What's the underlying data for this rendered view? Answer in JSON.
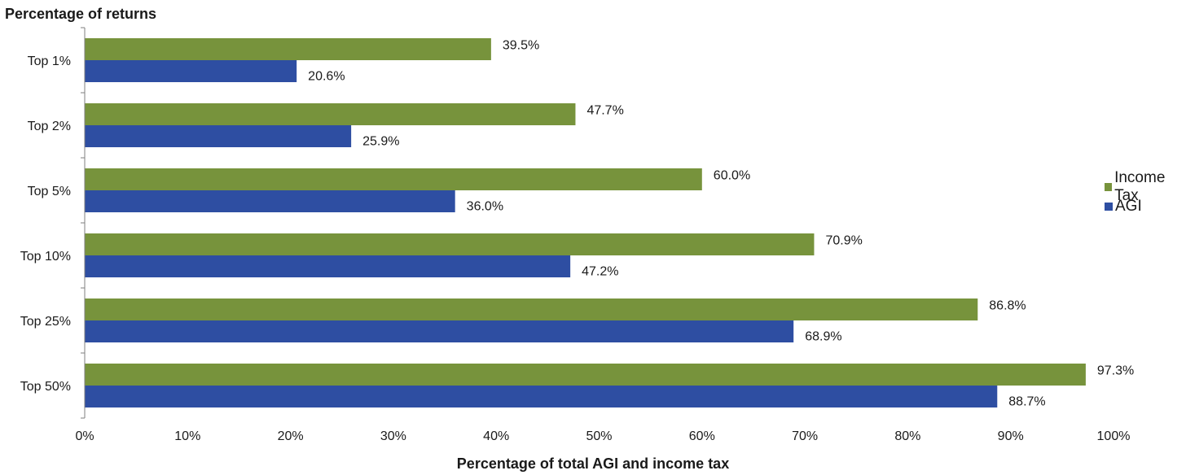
{
  "chart_data": {
    "type": "bar",
    "orientation": "horizontal",
    "ylabel": "Percentage of returns",
    "xlabel": "Percentage of total AGI and income tax",
    "categories": [
      "Top 1%",
      "Top 2%",
      "Top 5%",
      "Top 10%",
      "Top 25%",
      "Top 50%"
    ],
    "series": [
      {
        "name": "Income Tax",
        "color": "#77933c",
        "values": [
          39.5,
          47.7,
          60.0,
          70.9,
          86.8,
          97.3
        ],
        "labels": [
          "39.5%",
          "47.7%",
          "60.0%",
          "70.9%",
          "86.8%",
          "97.3%"
        ]
      },
      {
        "name": "AGI",
        "color": "#2e4ea2",
        "values": [
          20.6,
          25.9,
          36.0,
          47.2,
          68.9,
          88.7
        ],
        "labels": [
          "20.6%",
          "25.9%",
          "36.0%",
          "47.2%",
          "68.9%",
          "88.7%"
        ]
      }
    ],
    "xlim": [
      0,
      100
    ],
    "xticks": [
      0,
      10,
      20,
      30,
      40,
      50,
      60,
      70,
      80,
      90,
      100
    ],
    "xtick_labels": [
      "0%",
      "10%",
      "20%",
      "30%",
      "40%",
      "50%",
      "60%",
      "70%",
      "80%",
      "90%",
      "100%"
    ],
    "grid": false,
    "legend_position": "right"
  }
}
